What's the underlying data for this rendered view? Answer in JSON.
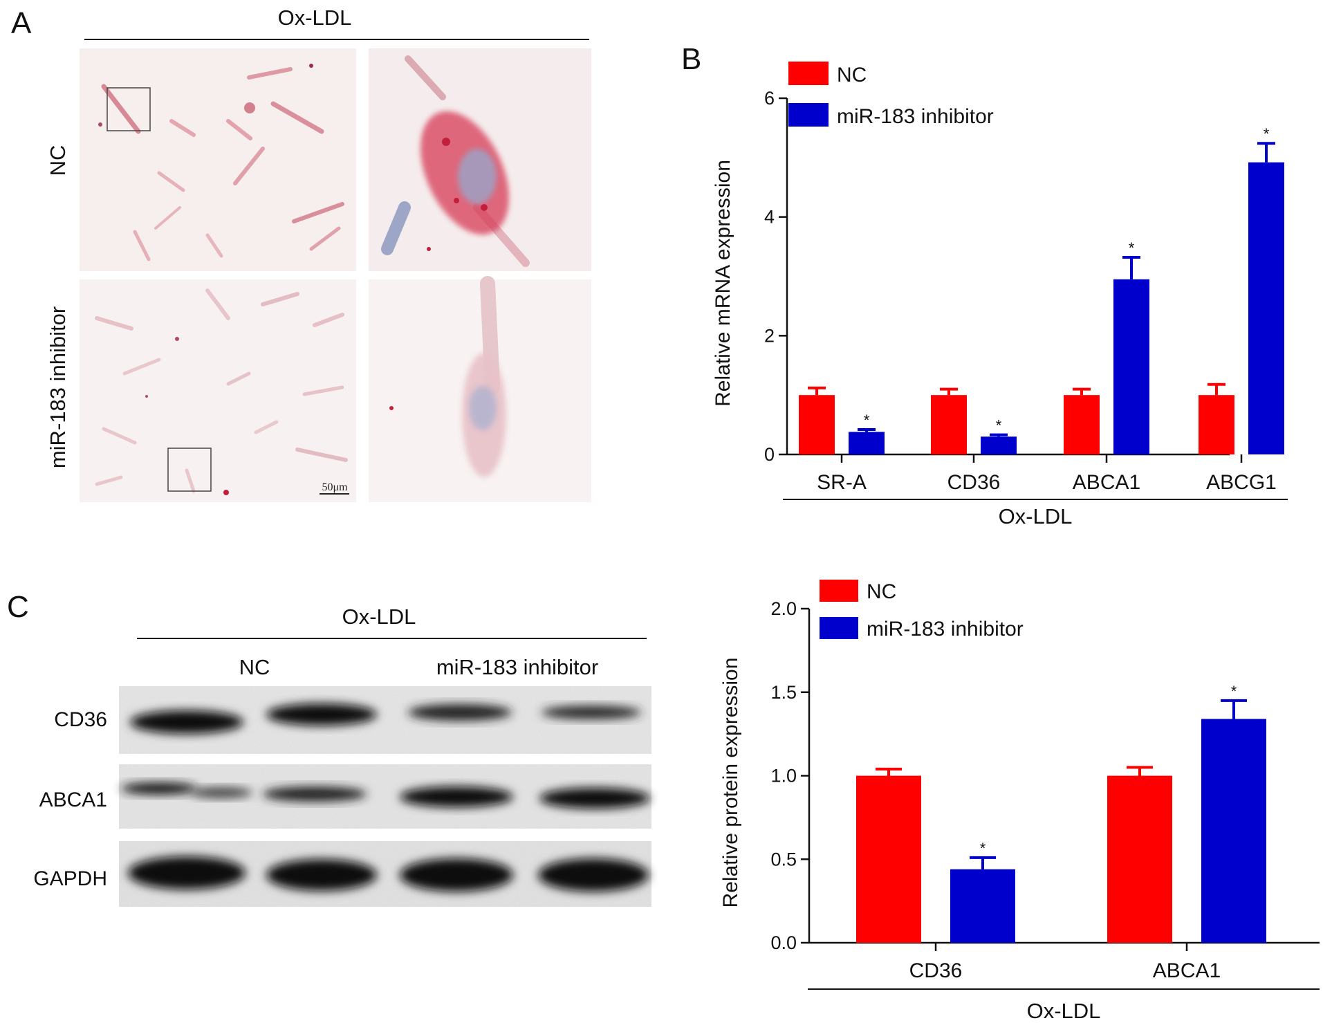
{
  "panel_a": {
    "letter": "A",
    "header": "Ox-LDL",
    "row_labels": [
      "NC",
      "miR-183 inhibitor"
    ],
    "scale_bar": "50μm"
  },
  "panel_b": {
    "letter": "B",
    "group_label": "Ox-LDL"
  },
  "panel_c": {
    "letter": "C",
    "header": "Ox-LDL",
    "lane_groups": [
      "NC",
      "miR-183 inhibitor"
    ],
    "blot_rows": [
      "CD36",
      "ABCA1",
      "GAPDH"
    ],
    "group_label": "Ox-LDL"
  },
  "colors": {
    "nc": "#ff0000",
    "inhibitor": "#0000cc"
  },
  "chart_data": [
    {
      "id": "mrna",
      "type": "bar",
      "ylabel": "Relative mRNA expression",
      "categories": [
        "SR-A",
        "CD36",
        "ABCA1",
        "ABCG1"
      ],
      "ylim": [
        0,
        6
      ],
      "yticks": [
        "0",
        "2",
        "4",
        "6"
      ],
      "legend_position": "top-left",
      "series": [
        {
          "name": "NC",
          "values": [
            1.0,
            1.0,
            1.0,
            1.0
          ],
          "errors": [
            0.12,
            0.1,
            0.1,
            0.18
          ],
          "stars": [
            "",
            "",
            "",
            ""
          ]
        },
        {
          "name": "miR-183 inhibitor",
          "values": [
            0.38,
            0.3,
            2.95,
            4.92
          ],
          "errors": [
            0.04,
            0.03,
            0.37,
            0.32
          ],
          "stars": [
            "*",
            "*",
            "*",
            "*"
          ]
        }
      ]
    },
    {
      "id": "protein",
      "type": "bar",
      "ylabel": "Relative protein expression",
      "categories": [
        "CD36",
        "ABCA1"
      ],
      "ylim": [
        0,
        2.0
      ],
      "yticks": [
        "0.0",
        "0.5",
        "1.0",
        "1.5",
        "2.0"
      ],
      "legend_position": "top-left",
      "series": [
        {
          "name": "NC",
          "values": [
            1.0,
            1.0
          ],
          "errors": [
            0.04,
            0.05
          ],
          "stars": [
            "",
            ""
          ]
        },
        {
          "name": "miR-183 inhibitor",
          "values": [
            0.44,
            1.34
          ],
          "errors": [
            0.07,
            0.11
          ],
          "stars": [
            "*",
            "*"
          ]
        }
      ]
    }
  ]
}
